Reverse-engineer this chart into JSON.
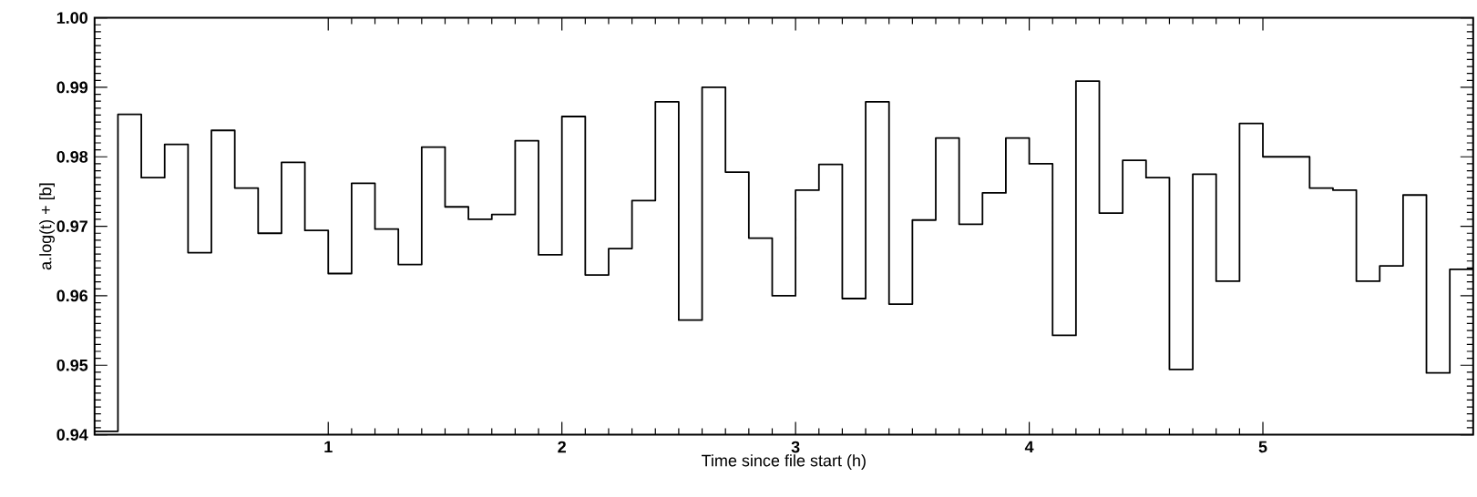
{
  "chart_data": {
    "type": "step",
    "xlabel": "Time since file start (h)",
    "ylabel": "a.log(t) + [b]",
    "x": [
      0,
      0.1,
      0.2,
      0.3,
      0.4,
      0.5,
      0.6,
      0.7,
      0.8,
      0.9,
      1.0,
      1.1,
      1.2,
      1.3,
      1.4,
      1.5,
      1.6,
      1.7,
      1.8,
      1.9,
      2.0,
      2.1,
      2.2,
      2.3,
      2.4,
      2.5,
      2.6,
      2.7,
      2.8,
      2.9,
      3.0,
      3.1,
      3.2,
      3.3,
      3.4,
      3.5,
      3.6,
      3.7,
      3.8,
      3.9,
      4.0,
      4.1,
      4.2,
      4.3,
      4.4,
      4.5,
      4.6,
      4.7,
      4.8,
      4.9,
      5.0,
      5.1,
      5.2,
      5.3,
      5.4,
      5.5,
      5.6,
      5.7,
      5.8,
      5.9
    ],
    "values": [
      0.9405,
      0.9861,
      0.977,
      0.9818,
      0.9662,
      0.9838,
      0.9755,
      0.969,
      0.9792,
      0.9694,
      0.9632,
      0.9762,
      0.9696,
      0.9645,
      0.9814,
      0.9728,
      0.971,
      0.9717,
      0.9823,
      0.9659,
      0.9858,
      0.963,
      0.9668,
      0.9737,
      0.9879,
      0.9565,
      0.99,
      0.9778,
      0.9683,
      0.96,
      0.9752,
      0.9789,
      0.9596,
      0.9879,
      0.9588,
      0.9709,
      0.9827,
      0.9703,
      0.9748,
      0.9827,
      0.979,
      0.9543,
      0.9909,
      0.9719,
      0.9795,
      0.977,
      0.9494,
      0.9775,
      0.9621,
      0.9848,
      0.98,
      0.98,
      0.9755,
      0.9752,
      0.9621,
      0.9643,
      0.9745,
      0.9489,
      0.9638,
      0.9878
    ],
    "color": "#000000",
    "xlim": [
      0,
      5.9
    ],
    "ylim": [
      0.94,
      1.0
    ],
    "xticks": [
      1,
      2,
      3,
      4,
      5
    ],
    "yticks": [
      0.94,
      0.95,
      0.96,
      0.97,
      0.98,
      0.99,
      {
        "value": 1.0,
        "label": "1.00"
      }
    ]
  }
}
